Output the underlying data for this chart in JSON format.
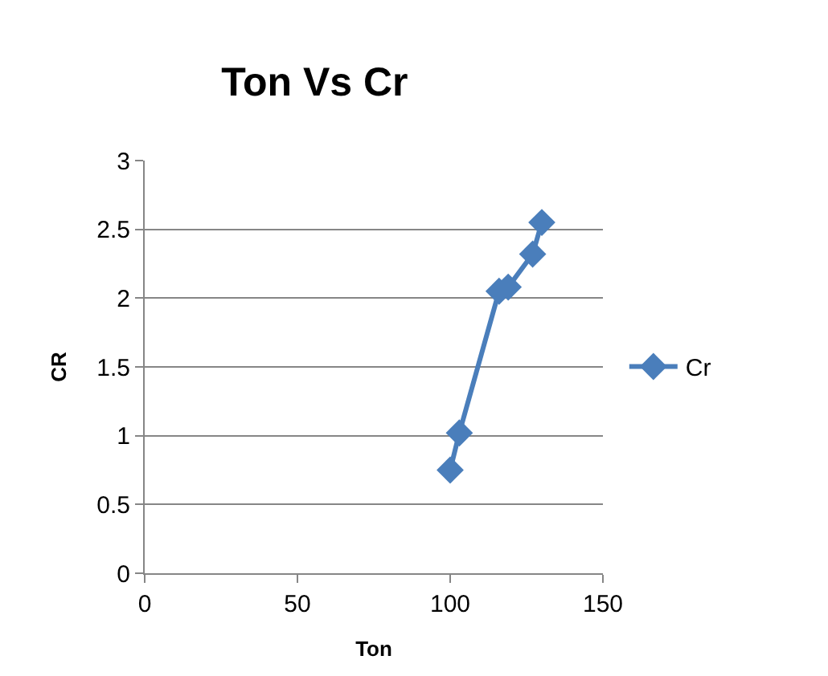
{
  "chart_data": {
    "type": "line",
    "title": "Ton Vs Cr",
    "xlabel": "Ton",
    "ylabel": "CR",
    "x": [
      100,
      103,
      116,
      119,
      127,
      130
    ],
    "series": [
      {
        "name": "Cr",
        "color": "#4a7ebb",
        "values": [
          0.75,
          1.02,
          2.05,
          2.08,
          2.32,
          2.55
        ]
      }
    ],
    "xlim": [
      0,
      150
    ],
    "xticks": [
      0,
      50,
      100,
      150
    ],
    "ylim": [
      0,
      3
    ],
    "yticks": [
      0,
      0.5,
      1,
      1.5,
      2,
      2.5,
      3
    ],
    "grid": "y",
    "legend": "right",
    "marker": "diamond",
    "line_style": "solid"
  }
}
